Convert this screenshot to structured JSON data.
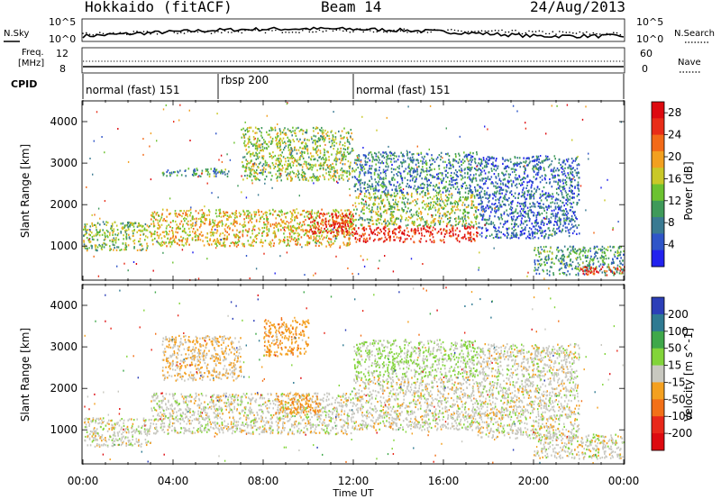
{
  "header": {
    "station": "Hokkaido (fitACF)",
    "beam": "Beam 14",
    "date": "24/Aug/2013"
  },
  "panels": {
    "nsky_label": "N.Sky",
    "nsearch_label": "N.Search",
    "nsky_ticks": [
      "10^5",
      "10^0"
    ],
    "nsearch_ticks": [
      "10^5",
      "10^0"
    ],
    "freq_label": [
      "Freq.",
      "[MHz]"
    ],
    "freq_ticks": [
      "12",
      "8"
    ],
    "nave_label": "Nave",
    "nave_ticks": [
      "60",
      "0"
    ],
    "cpid_label": "CPID",
    "cpid_segments": [
      {
        "label": "normal (fast) 151",
        "start_hour": 0,
        "end_hour": 6
      },
      {
        "label": "rbsp 200",
        "start_hour": 6,
        "end_hour": 12
      },
      {
        "label": "normal (fast) 151",
        "start_hour": 12,
        "end_hour": 24
      }
    ]
  },
  "chart_data": [
    {
      "type": "heatmap",
      "title": "",
      "xlabel": "Time UT",
      "ylabel": "Slant Range [km]",
      "x_ticks": [
        "00:00",
        "04:00",
        "08:00",
        "12:00",
        "16:00",
        "20:00",
        "00:00"
      ],
      "xlim_hours": [
        0,
        24
      ],
      "y_ticks": [
        1000,
        2000,
        3000,
        4000
      ],
      "ylim": [
        180,
        4500
      ],
      "colorbar": {
        "label": "Power [dB]",
        "ticks": [
          4,
          8,
          12,
          16,
          20,
          24,
          28
        ],
        "range": [
          0,
          30
        ],
        "colors": [
          "#2222ee",
          "#2f55c8",
          "#3a7a92",
          "#3f9a5a",
          "#6cc230",
          "#c9c828",
          "#f2a020",
          "#f26a18",
          "#e82d18",
          "#dd0a10"
        ]
      },
      "scatter_regions": [
        {
          "start_hour": 0.0,
          "end_hour": 3.0,
          "range_min": 900,
          "range_max": 1600,
          "level": 14
        },
        {
          "start_hour": 3.0,
          "end_hour": 12.0,
          "range_min": 1000,
          "range_max": 1900,
          "level": 18
        },
        {
          "start_hour": 10.0,
          "end_hour": 12.0,
          "range_min": 1300,
          "range_max": 1800,
          "level": 27
        },
        {
          "start_hour": 3.5,
          "end_hour": 6.5,
          "range_min": 2700,
          "range_max": 2900,
          "level": 10
        },
        {
          "start_hour": 7.0,
          "end_hour": 12.0,
          "range_min": 2600,
          "range_max": 3900,
          "level": 14
        },
        {
          "start_hour": 12.0,
          "end_hour": 17.5,
          "range_min": 1100,
          "range_max": 1500,
          "level": 27
        },
        {
          "start_hour": 12.0,
          "end_hour": 17.5,
          "range_min": 1500,
          "range_max": 2300,
          "level": 14
        },
        {
          "start_hour": 12.0,
          "end_hour": 17.5,
          "range_min": 2300,
          "range_max": 3300,
          "level": 8
        },
        {
          "start_hour": 17.5,
          "end_hour": 22.0,
          "range_min": 1200,
          "range_max": 3200,
          "level": 6
        },
        {
          "start_hour": 20.0,
          "end_hour": 24.0,
          "range_min": 300,
          "range_max": 1000,
          "level": 10
        },
        {
          "start_hour": 22.0,
          "end_hour": 24.0,
          "range_min": 300,
          "range_max": 500,
          "level": 26
        }
      ]
    },
    {
      "type": "heatmap",
      "title": "",
      "xlabel": "Time UT",
      "ylabel": "Slant Range [km]",
      "x_ticks": [
        "00:00",
        "04:00",
        "08:00",
        "12:00",
        "16:00",
        "20:00",
        "00:00"
      ],
      "xlim_hours": [
        0,
        24
      ],
      "y_ticks": [
        1000,
        2000,
        3000,
        4000
      ],
      "ylim": [
        180,
        4500
      ],
      "colorbar": {
        "label": "Velocity [m s^-1]",
        "ticks": [
          200,
          100,
          50,
          15,
          -15,
          -50,
          -100,
          -200
        ],
        "range": [
          -250,
          250
        ],
        "colors": [
          "#2c3fb8",
          "#2f7a92",
          "#3fa84a",
          "#82d43a",
          "#c8c8c0",
          "#f4a020",
          "#f27018",
          "#e8281a",
          "#dd0a10"
        ]
      },
      "scatter_regions": [
        {
          "start_hour": 0.0,
          "end_hour": 3.0,
          "range_min": 600,
          "range_max": 1300,
          "level": 0
        },
        {
          "start_hour": 3.0,
          "end_hour": 12.0,
          "range_min": 900,
          "range_max": 1900,
          "level": 0
        },
        {
          "start_hour": 8.5,
          "end_hour": 10.5,
          "range_min": 1400,
          "range_max": 1900,
          "level": -60
        },
        {
          "start_hour": 3.5,
          "end_hour": 7.0,
          "range_min": 2200,
          "range_max": 3300,
          "level": -30
        },
        {
          "start_hour": 8.0,
          "end_hour": 10.0,
          "range_min": 2800,
          "range_max": 3700,
          "level": -60
        },
        {
          "start_hour": 12.0,
          "end_hour": 17.5,
          "range_min": 1000,
          "range_max": 2300,
          "level": 0
        },
        {
          "start_hour": 12.0,
          "end_hour": 17.5,
          "range_min": 2300,
          "range_max": 3200,
          "level": 30
        },
        {
          "start_hour": 17.5,
          "end_hour": 22.0,
          "range_min": 800,
          "range_max": 3100,
          "level": 0
        },
        {
          "start_hour": 20.0,
          "end_hour": 24.0,
          "range_min": 300,
          "range_max": 900,
          "level": 0
        }
      ]
    }
  ]
}
